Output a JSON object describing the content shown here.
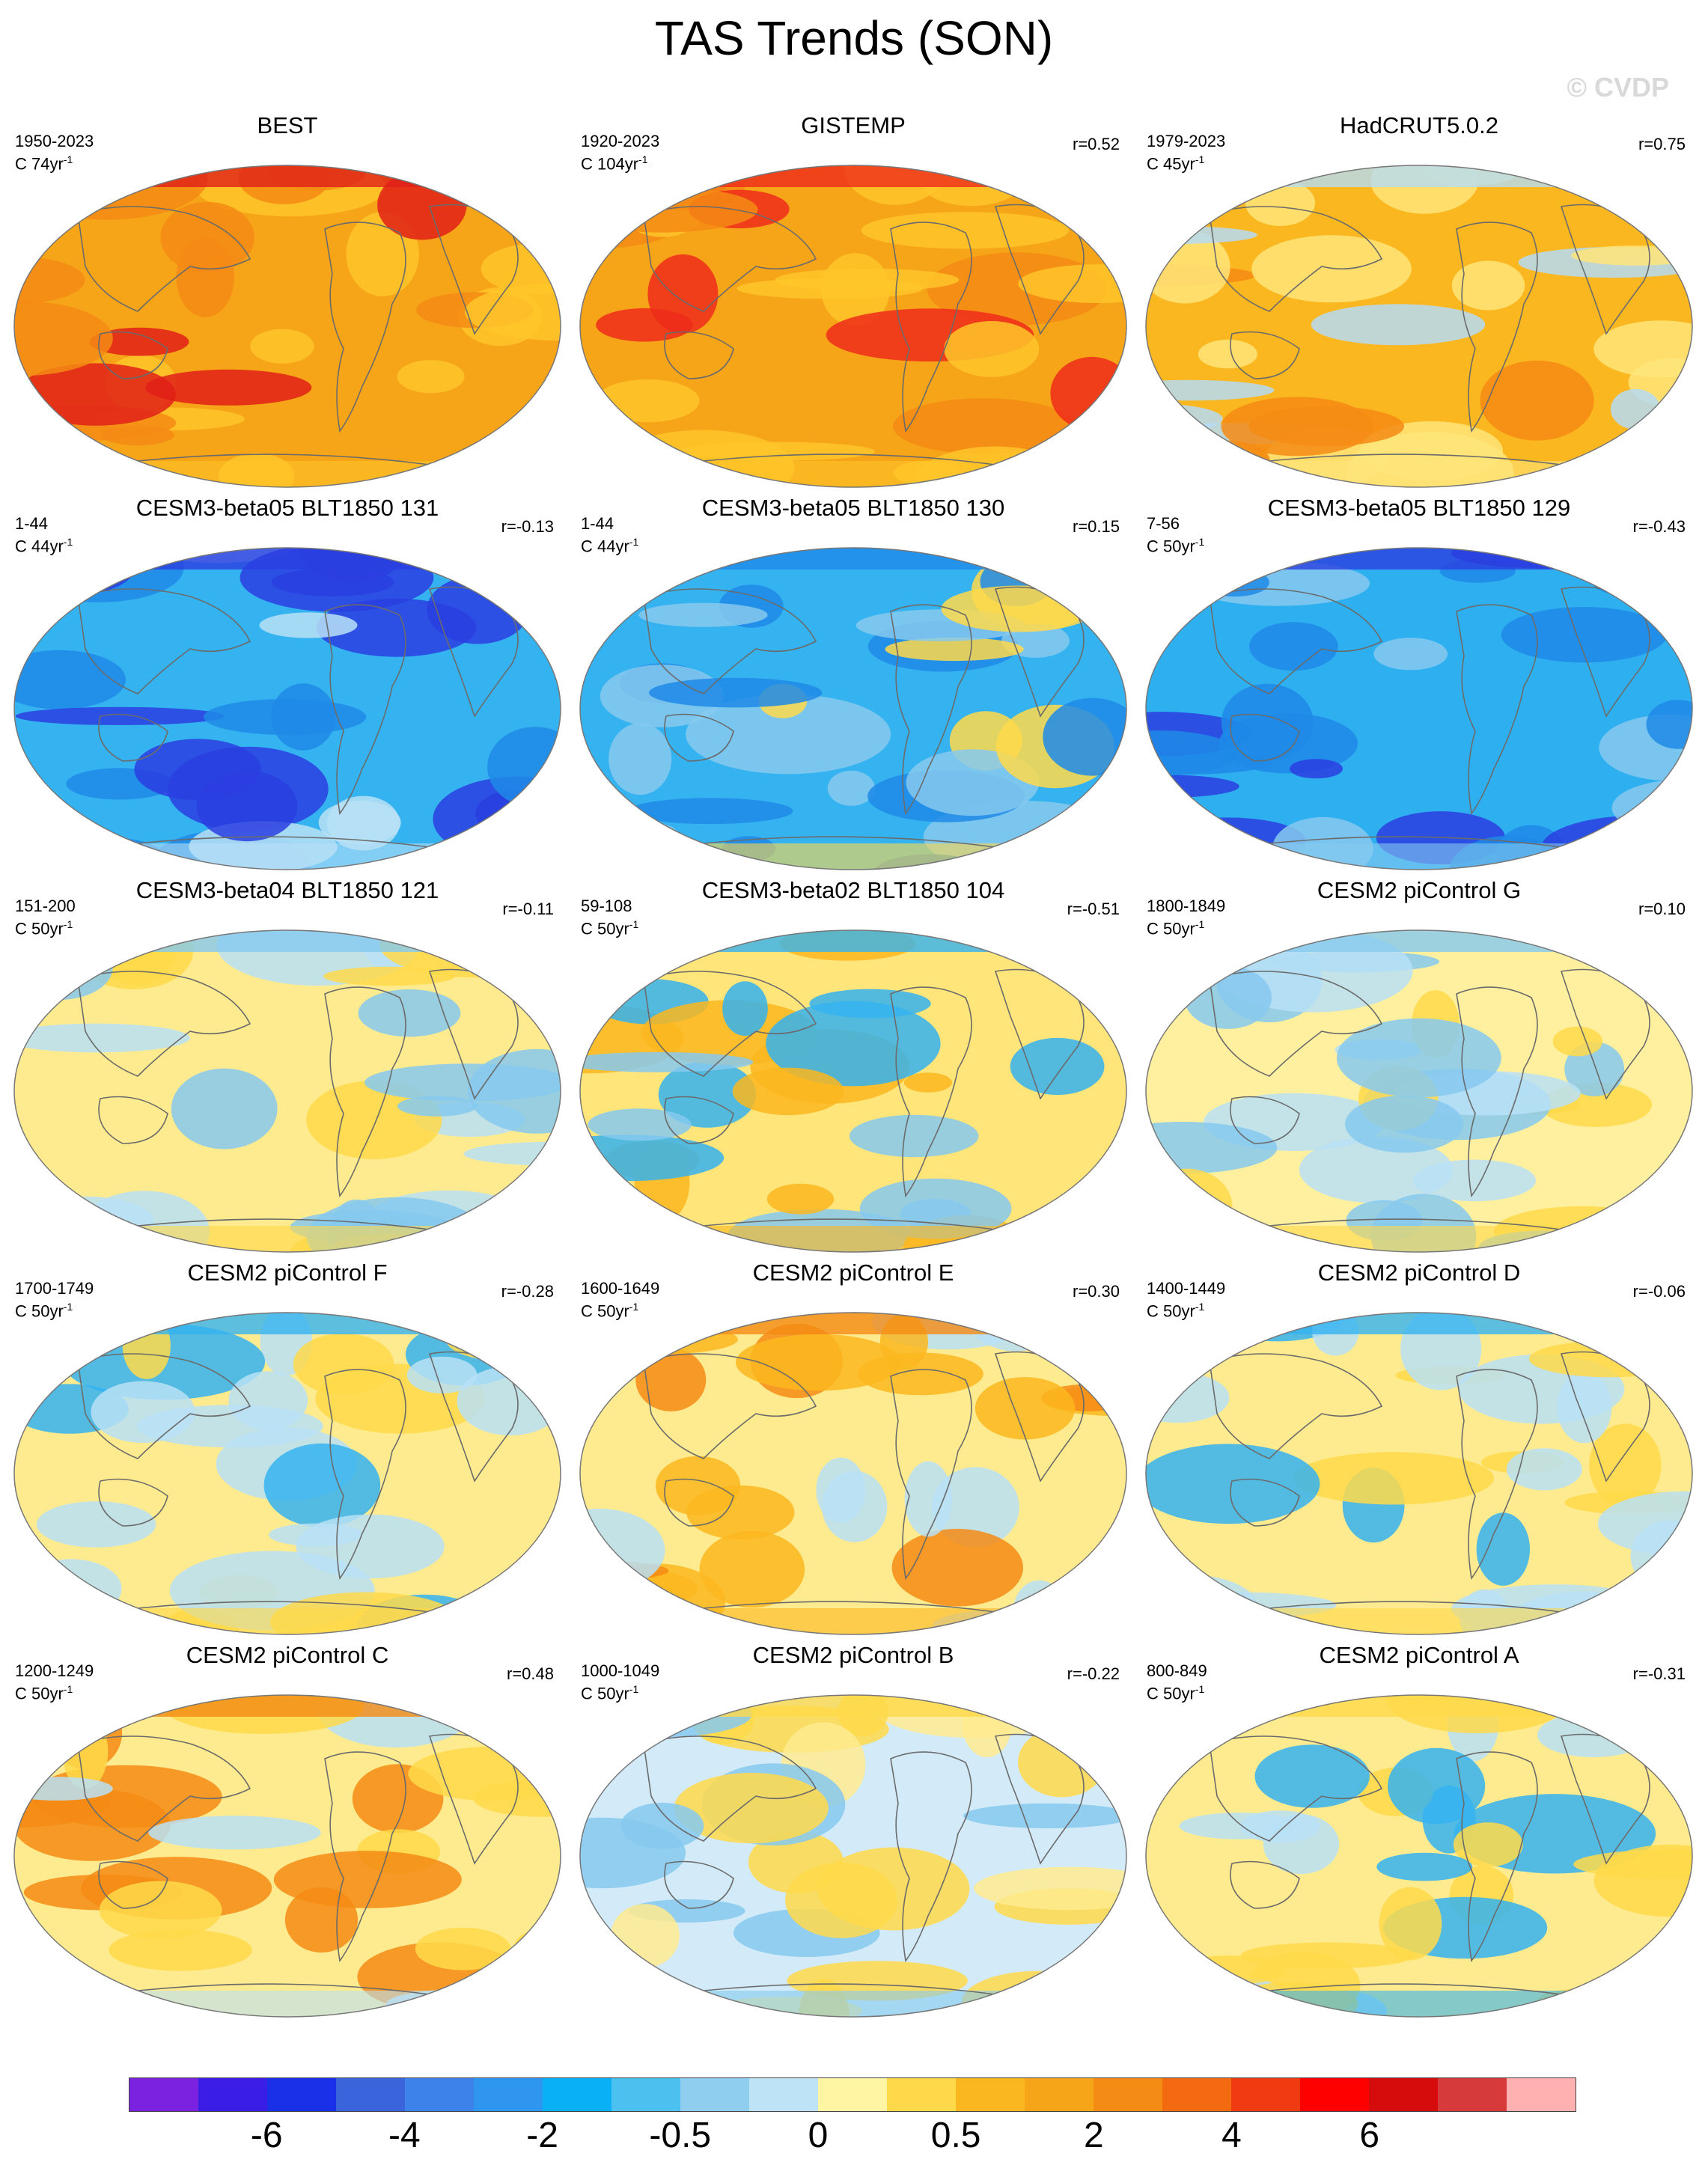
{
  "title": "TAS Trends (SON)",
  "watermark": "© CVDP",
  "panels": [
    {
      "title": "BEST",
      "period": "1950-2023",
      "units": "C 74yr",
      "units_sup": "-1",
      "r": "",
      "palette": "warm-strong",
      "colors": [
        "#f6a418",
        "#f48b14",
        "#ffc52a",
        "#e02018"
      ]
    },
    {
      "title": "GISTEMP",
      "period": "1920-2023",
      "units": "C 104yr",
      "units_sup": "-1",
      "r": "r=0.52",
      "palette": "warm-strong",
      "colors": [
        "#f6a418",
        "#f48b14",
        "#ffc52a",
        "#ef2b1b"
      ]
    },
    {
      "title": "HadCRUT5.0.2",
      "period": "1979-2023",
      "units": "C 45yr",
      "units_sup": "-1",
      "r": "r=0.75",
      "palette": "warm-mixed",
      "colors": [
        "#fbb71f",
        "#f48b14",
        "#ffe57a",
        "#b5dcf4"
      ]
    },
    {
      "title": "CESM3-beta05 BLT1850 131",
      "period": "1-44",
      "units": "C 44yr",
      "units_sup": "-1",
      "r": "r=-0.13",
      "palette": "cold-strong",
      "colors": [
        "#35b3f0",
        "#1f8ae8",
        "#b8e0f6",
        "#2a3ee0"
      ]
    },
    {
      "title": "CESM3-beta05 BLT1850 130",
      "period": "1-44",
      "units": "C 44yr",
      "units_sup": "-1",
      "r": "r=0.15",
      "palette": "cold-mixed",
      "colors": [
        "#35b3f0",
        "#86c9ef",
        "#ffd94a",
        "#1f8ae8"
      ]
    },
    {
      "title": "CESM3-beta05 BLT1850 129",
      "period": "7-56",
      "units": "C 50yr",
      "units_sup": "-1",
      "r": "r=-0.43",
      "palette": "cold-strong",
      "colors": [
        "#2eb0f0",
        "#1f8ae8",
        "#86c9ef",
        "#2a3ee0"
      ]
    },
    {
      "title": "CESM3-beta04 BLT1850 121",
      "period": "151-200",
      "units": "C 50yr",
      "units_sup": "-1",
      "r": "r=-0.11",
      "palette": "neutral",
      "colors": [
        "#ffeb8f",
        "#b8e0f6",
        "#ffd94a",
        "#86c9ef"
      ]
    },
    {
      "title": "CESM3-beta02 BLT1850 104",
      "period": "59-108",
      "units": "C 50yr",
      "units_sup": "-1",
      "r": "r=-0.51",
      "palette": "neutral",
      "colors": [
        "#ffe57a",
        "#86c9ef",
        "#fbb71f",
        "#35b3f0"
      ]
    },
    {
      "title": "CESM2 piControl G",
      "period": "1800-1849",
      "units": "C 50yr",
      "units_sup": "-1",
      "r": "r=0.10",
      "palette": "neutral",
      "colors": [
        "#fff0a0",
        "#b8e0f6",
        "#ffd94a",
        "#86c9ef"
      ]
    },
    {
      "title": "CESM2 piControl F",
      "period": "1700-1749",
      "units": "C 50yr",
      "units_sup": "-1",
      "r": "r=-0.28",
      "palette": "neutral",
      "colors": [
        "#ffeb8f",
        "#b8e0f6",
        "#ffd94a",
        "#35b3f0"
      ]
    },
    {
      "title": "CESM2 piControl E",
      "period": "1600-1649",
      "units": "C 50yr",
      "units_sup": "-1",
      "r": "r=0.30",
      "palette": "neutral",
      "colors": [
        "#ffeb8f",
        "#b8e0f6",
        "#fbb71f",
        "#f48b14"
      ]
    },
    {
      "title": "CESM2 piControl D",
      "period": "1400-1449",
      "units": "C 50yr",
      "units_sup": "-1",
      "r": "r=-0.06",
      "palette": "neutral",
      "colors": [
        "#ffeb8f",
        "#b8e0f6",
        "#ffd94a",
        "#35b3f0"
      ]
    },
    {
      "title": "CESM2 piControl C",
      "period": "1200-1249",
      "units": "C 50yr",
      "units_sup": "-1",
      "r": "r=0.48",
      "palette": "neutral",
      "colors": [
        "#ffeb8f",
        "#ffd94a",
        "#b8e0f6",
        "#f48b14"
      ]
    },
    {
      "title": "CESM2 piControl B",
      "period": "1000-1049",
      "units": "C 50yr",
      "units_sup": "-1",
      "r": "r=-0.22",
      "palette": "neutral",
      "colors": [
        "#d3ebf8",
        "#ffeb8f",
        "#86c9ef",
        "#ffd94a"
      ]
    },
    {
      "title": "CESM2 piControl A",
      "period": "800-849",
      "units": "C 50yr",
      "units_sup": "-1",
      "r": "r=-0.31",
      "palette": "neutral",
      "colors": [
        "#ffeb8f",
        "#b8e0f6",
        "#35b3f0",
        "#ffd94a"
      ]
    }
  ],
  "colorbar": {
    "colors": [
      "#7a22e0",
      "#3a1ee8",
      "#1a2fe8",
      "#3a64dc",
      "#3d82ea",
      "#2f96f0",
      "#0ab0f6",
      "#4cc0ef",
      "#90cef0",
      "#bfe3f6",
      "#fff5a3",
      "#ffd94a",
      "#fbb71f",
      "#f6a418",
      "#f48b14",
      "#f46a10",
      "#ef3a12",
      "#ff0000",
      "#d60b0b",
      "#d63a3a",
      "#ffb0b0"
    ],
    "tick_labels": [
      "-6",
      "-4",
      "-2",
      "-0.5",
      "0",
      "0.5",
      "2",
      "4",
      "6"
    ]
  }
}
